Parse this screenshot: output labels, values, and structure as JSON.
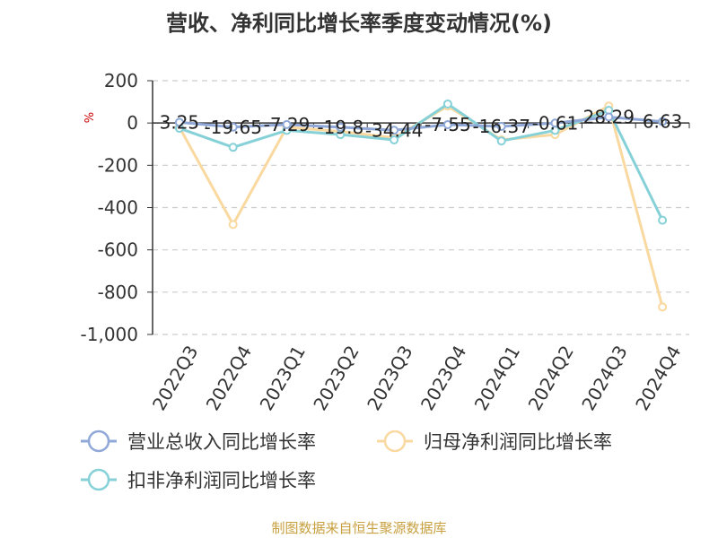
{
  "chart_data": {
    "type": "line",
    "title": "营收、净利同比增长率季度变动情况(%)",
    "ylabel": "%",
    "categories": [
      "2022Q3",
      "2022Q4",
      "2023Q1",
      "2023Q2",
      "2023Q3",
      "2023Q4",
      "2024Q1",
      "2024Q2",
      "2024Q3",
      "2024Q4"
    ],
    "ylim": [
      -1000,
      200
    ],
    "yticks": [
      200,
      0,
      -200,
      -400,
      -600,
      -800,
      -1000
    ],
    "ytick_labels": [
      "200",
      "0",
      "-200",
      "-400",
      "-600",
      "-800",
      "-1,000"
    ],
    "grid": true,
    "legend_position": "bottom-left",
    "series": [
      {
        "name": "营业总收入同比增长率",
        "color": "#8fa8d8",
        "values": [
          3.25,
          -19.65,
          -7.29,
          -19.8,
          -34.44,
          -7.55,
          -16.37,
          -0.61,
          28.29,
          6.63
        ],
        "labels": [
          "3.25",
          "-19.65",
          "-7.29",
          "-19.8",
          "-34.44",
          "-7.55",
          "-16.37",
          "-0.61",
          "28.29",
          "6.63"
        ]
      },
      {
        "name": "归母净利润同比增长率",
        "color": "#f9d9a0",
        "values": [
          -20,
          -480,
          -20,
          -40,
          -70,
          80,
          -80,
          -55,
          80,
          -870
        ]
      },
      {
        "name": "扣非净利润同比增长率",
        "color": "#86d1d8",
        "values": [
          -25,
          -115,
          -35,
          -55,
          -80,
          90,
          -85,
          -35,
          60,
          -460
        ]
      }
    ],
    "source": "制图数据来自恒生聚源数据库"
  }
}
